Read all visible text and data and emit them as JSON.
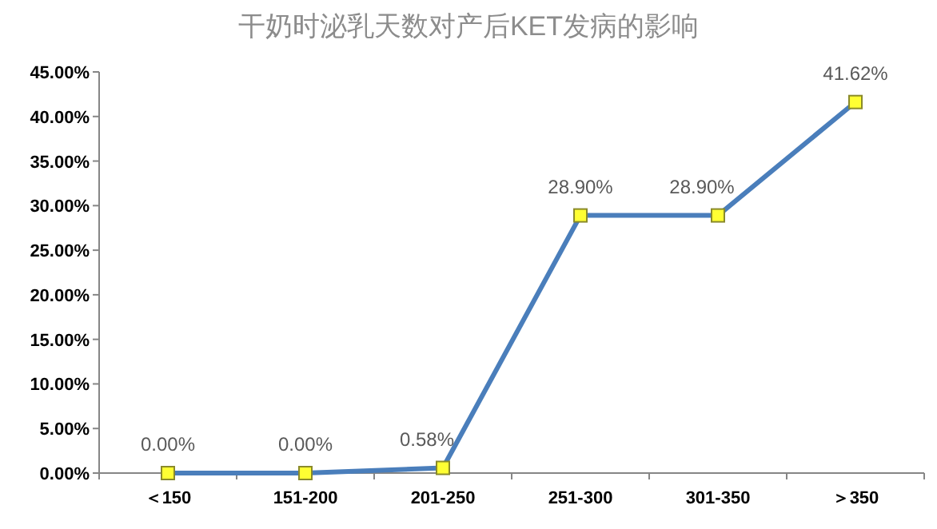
{
  "chart_data": {
    "type": "line",
    "title": "干奶时泌乳天数对产后KET发病的影响",
    "categories": [
      "＜150",
      "151-200",
      "201-250",
      "251-300",
      "301-350",
      "＞350"
    ],
    "series": [
      {
        "color": "#4a7ebb",
        "values": [
          0,
          0,
          0.58,
          28.9,
          28.9,
          41.62
        ],
        "value_labels": [
          "0.00%",
          "0.00%",
          "0.58%",
          "28.90%",
          "28.90%",
          "41.62%"
        ]
      }
    ],
    "ylim": [
      0,
      45
    ],
    "yticks": [
      {
        "value": 0,
        "label": "0.00%"
      },
      {
        "value": 5,
        "label": "5.00%"
      },
      {
        "value": 10,
        "label": "10.00%"
      },
      {
        "value": 15,
        "label": "15.00%"
      },
      {
        "value": 20,
        "label": "20.00%"
      },
      {
        "value": 25,
        "label": "25.00%"
      },
      {
        "value": 30,
        "label": "30.00%"
      },
      {
        "value": 35,
        "label": "35.00%"
      },
      {
        "value": 40,
        "label": "40.00%"
      },
      {
        "value": 45,
        "label": "45.00%"
      }
    ],
    "grid": false,
    "marker": "square",
    "line_style": "solid"
  }
}
